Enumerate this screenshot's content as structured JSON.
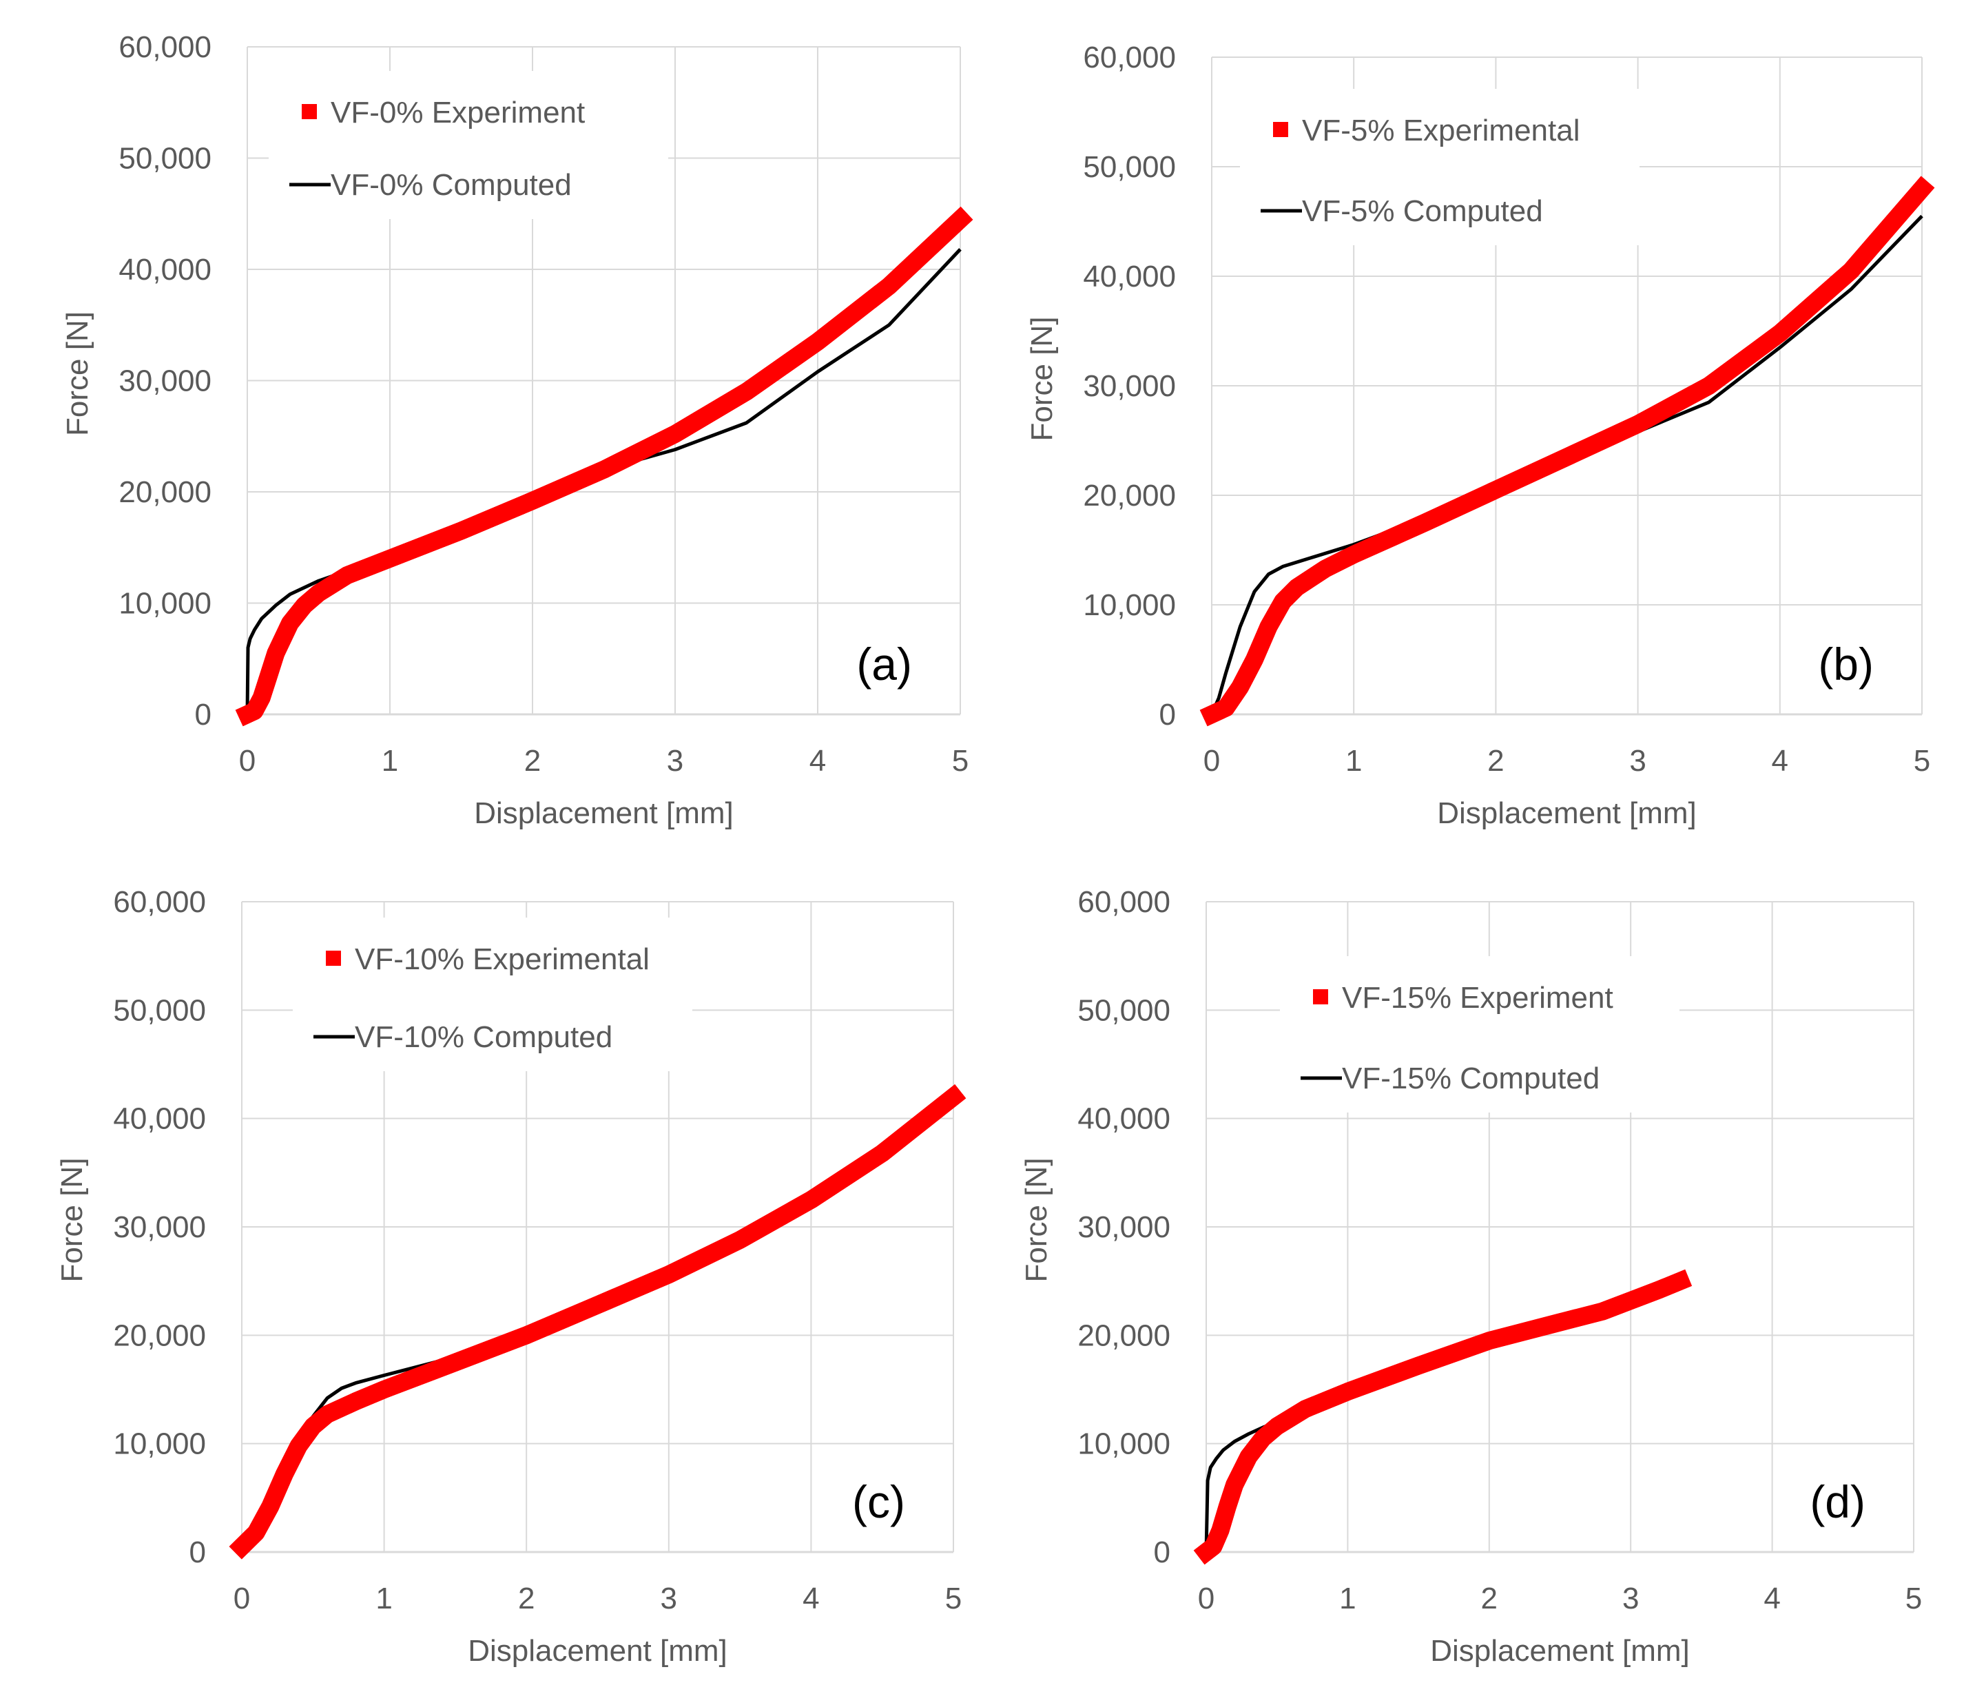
{
  "figure": {
    "colors": {
      "experiment": "#ff0000",
      "computed": "#000000",
      "grid": "#d9d9d9",
      "text": "#595959",
      "panel_label": "#000000"
    }
  },
  "chart_data": [
    {
      "type": "line",
      "panel_label": "(a)",
      "xlabel": "Displacement [mm]",
      "ylabel": "Force [N]",
      "xlim": [
        0,
        5
      ],
      "ylim": [
        0,
        60000
      ],
      "x_ticks": [
        0,
        1,
        2,
        3,
        4,
        5
      ],
      "x_tick_labels": [
        "0",
        "1",
        "2",
        "3",
        "4",
        "5"
      ],
      "y_ticks": [
        0,
        10000,
        20000,
        30000,
        40000,
        50000,
        60000
      ],
      "y_tick_labels": [
        "0",
        "10,000",
        "20,000",
        "30,000",
        "40,000",
        "50,000",
        "60,000"
      ],
      "grid": true,
      "legend": {
        "placement": "top-left"
      },
      "series": [
        {
          "name": "VF-0% Experiment",
          "style": "experiment",
          "x": [
            0,
            0.05,
            0.1,
            0.15,
            0.2,
            0.3,
            0.4,
            0.5,
            0.7,
            1.0,
            1.5,
            2.0,
            2.5,
            3.0,
            3.5,
            4.0,
            4.5,
            5.0
          ],
          "y": [
            0,
            300,
            1500,
            3500,
            5500,
            8200,
            9800,
            10900,
            12500,
            14000,
            16500,
            19200,
            22000,
            25200,
            29000,
            33500,
            38500,
            44500
          ]
        },
        {
          "name": "VF-0% Computed",
          "style": "computed",
          "x": [
            0,
            0.005,
            0.02,
            0.05,
            0.1,
            0.2,
            0.3,
            0.5,
            0.7,
            1.0,
            1.5,
            2.0,
            2.5,
            3.0,
            3.5,
            4.0,
            4.5,
            5.0
          ],
          "y": [
            0,
            6000,
            6800,
            7600,
            8600,
            9800,
            10800,
            12000,
            12900,
            14000,
            16500,
            19200,
            22000,
            23800,
            26200,
            30800,
            35000,
            41800
          ]
        }
      ]
    },
    {
      "type": "line",
      "panel_label": "(b)",
      "xlabel": "Displacement [mm]",
      "ylabel": "Force [N]",
      "xlim": [
        0,
        5
      ],
      "ylim": [
        0,
        60000
      ],
      "x_ticks": [
        0,
        1,
        2,
        3,
        4,
        5
      ],
      "x_tick_labels": [
        "0",
        "1",
        "2",
        "3",
        "4",
        "5"
      ],
      "y_ticks": [
        0,
        10000,
        20000,
        30000,
        40000,
        50000,
        60000
      ],
      "y_tick_labels": [
        "0",
        "10,000",
        "20,000",
        "30,000",
        "40,000",
        "50,000",
        "60,000"
      ],
      "grid": true,
      "legend": {
        "placement": "top-left"
      },
      "series": [
        {
          "name": "VF-5% Experimental",
          "style": "experiment",
          "x": [
            0,
            0.1,
            0.2,
            0.3,
            0.4,
            0.5,
            0.6,
            0.8,
            1.0,
            1.5,
            2.0,
            2.5,
            3.0,
            3.5,
            4.0,
            4.5,
            5.0
          ],
          "y": [
            0,
            600,
            2500,
            5000,
            8000,
            10300,
            11600,
            13300,
            14600,
            17500,
            20500,
            23500,
            26500,
            30000,
            34800,
            40500,
            48000
          ]
        },
        {
          "name": "VF-5% Computed",
          "style": "computed",
          "x": [
            0,
            0.05,
            0.1,
            0.2,
            0.3,
            0.4,
            0.5,
            0.7,
            1.0,
            1.5,
            2.0,
            2.5,
            3.0,
            3.5,
            4.0,
            4.5,
            5.0
          ],
          "y": [
            0,
            1500,
            3800,
            8000,
            11200,
            12800,
            13500,
            14300,
            15500,
            17900,
            20500,
            23200,
            25800,
            28500,
            33500,
            38800,
            45500
          ]
        }
      ]
    },
    {
      "type": "line",
      "panel_label": "(c)",
      "xlabel": "Displacement [mm]",
      "ylabel": "Force [N]",
      "xlim": [
        0,
        5
      ],
      "ylim": [
        0,
        60000
      ],
      "x_ticks": [
        0,
        1,
        2,
        3,
        4,
        5
      ],
      "x_tick_labels": [
        "0",
        "1",
        "2",
        "3",
        "4",
        "5"
      ],
      "y_ticks": [
        0,
        10000,
        20000,
        30000,
        40000,
        50000,
        60000
      ],
      "y_tick_labels": [
        "0",
        "10,000",
        "20,000",
        "30,000",
        "40,000",
        "50,000",
        "60,000"
      ],
      "grid": true,
      "legend": {
        "placement": "top-left"
      },
      "series": [
        {
          "name": "VF-10% Experimental",
          "style": "experiment",
          "x": [
            0,
            0.1,
            0.2,
            0.3,
            0.4,
            0.5,
            0.6,
            0.8,
            1.0,
            1.5,
            2.0,
            2.5,
            3.0,
            3.5,
            4.0,
            4.5,
            5.0
          ],
          "y": [
            500,
            1800,
            4200,
            7200,
            9800,
            11600,
            12700,
            13900,
            15000,
            17500,
            20000,
            22800,
            25600,
            28800,
            32500,
            36800,
            42000
          ]
        },
        {
          "name": "VF-10% Computed",
          "style": "computed",
          "x": [
            0,
            0.1,
            0.2,
            0.3,
            0.4,
            0.5,
            0.6,
            0.7,
            0.8,
            1.0,
            1.5,
            2.0,
            2.5,
            3.0,
            3.5,
            4.0,
            4.5,
            5.0
          ],
          "y": [
            500,
            1800,
            4200,
            7300,
            10000,
            12500,
            14200,
            15100,
            15600,
            16300,
            18000,
            20000,
            22800,
            25600,
            28500,
            32500,
            36800,
            42000
          ]
        }
      ]
    },
    {
      "type": "line",
      "panel_label": "(d)",
      "xlabel": "Displacement [mm]",
      "ylabel": "Force [N]",
      "xlim": [
        0,
        5
      ],
      "ylim": [
        0,
        60000
      ],
      "x_ticks": [
        0,
        1,
        2,
        3,
        4,
        5
      ],
      "x_tick_labels": [
        "0",
        "1",
        "2",
        "3",
        "4",
        "5"
      ],
      "y_ticks": [
        0,
        10000,
        20000,
        30000,
        40000,
        50000,
        60000
      ],
      "y_tick_labels": [
        "0",
        "10,000",
        "20,000",
        "30,000",
        "40,000",
        "50,000",
        "60,000"
      ],
      "grid": true,
      "legend": {
        "placement": "top-center"
      },
      "series": [
        {
          "name": "VF-15% Experiment",
          "style": "experiment",
          "x": [
            0,
            0.05,
            0.1,
            0.15,
            0.2,
            0.3,
            0.4,
            0.5,
            0.7,
            1.0,
            1.5,
            2.0,
            2.5,
            2.8,
            3.0,
            3.2,
            3.35
          ],
          "y": [
            0,
            500,
            2000,
            4200,
            6200,
            8800,
            10500,
            11600,
            13200,
            14800,
            17200,
            19500,
            21200,
            22200,
            23200,
            24200,
            25000
          ]
        },
        {
          "name": "VF-15% Computed",
          "style": "computed",
          "x": [
            0,
            0.01,
            0.03,
            0.07,
            0.12,
            0.2,
            0.3,
            0.4,
            0.5,
            0.7,
            1.0,
            1.5,
            2.0,
            2.5,
            2.8,
            3.0,
            3.2,
            3.35
          ],
          "y": [
            0,
            6600,
            7800,
            8600,
            9400,
            10200,
            10900,
            11500,
            12000,
            13200,
            14800,
            17200,
            19500,
            21200,
            22200,
            23200,
            24200,
            25000
          ]
        }
      ]
    }
  ]
}
